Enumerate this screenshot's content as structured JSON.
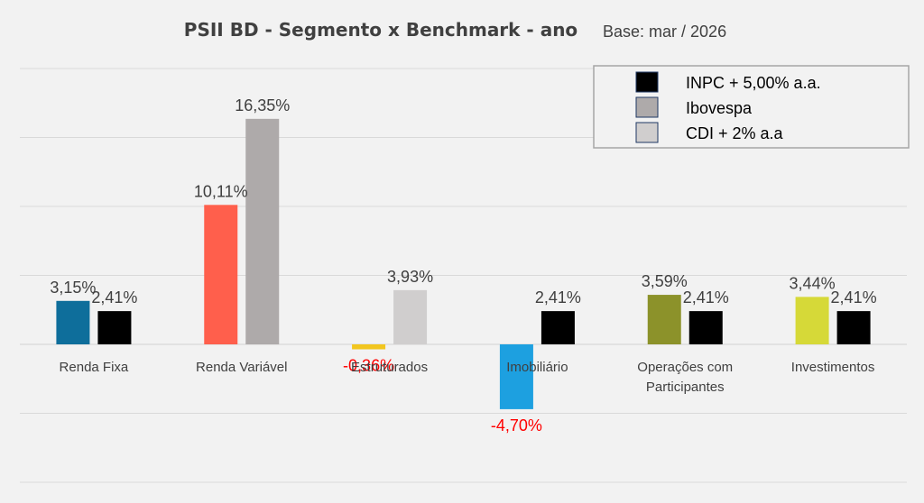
{
  "chart_data": {
    "type": "bar",
    "title": "PSII BD - Segmento x Benchmark - ano",
    "subtitle": "Base: mar / 2026",
    "categories": [
      {
        "label": [
          "Renda Fixa"
        ],
        "segment_value": 3.15,
        "segment_label": "3,15%",
        "segment_color": "#0e6e9b",
        "benchmark": "INPC",
        "benchmark_value": 2.41,
        "benchmark_label": "2,41%"
      },
      {
        "label": [
          "Renda Variável"
        ],
        "segment_value": 10.11,
        "segment_label": "10,11%",
        "segment_color": "#ff5f4c",
        "benchmark": "Ibovespa",
        "benchmark_value": 16.35,
        "benchmark_label": "16,35%"
      },
      {
        "label": [
          "Estruturados"
        ],
        "segment_value": -0.36,
        "segment_label": "-0,36%",
        "segment_color": "#f2c61f",
        "benchmark": "CDI",
        "benchmark_value": 3.93,
        "benchmark_label": "3,93%"
      },
      {
        "label": [
          "Imobiliário"
        ],
        "segment_value": -4.7,
        "segment_label": "-4,70%",
        "segment_color": "#1da0e0",
        "benchmark": "INPC",
        "benchmark_value": 2.41,
        "benchmark_label": "2,41%"
      },
      {
        "label": [
          "Operações com",
          "Participantes"
        ],
        "segment_value": 3.59,
        "segment_label": "3,59%",
        "segment_color": "#8c922a",
        "benchmark": "INPC",
        "benchmark_value": 2.41,
        "benchmark_label": "2,41%"
      },
      {
        "label": [
          "Investimentos"
        ],
        "segment_value": 3.44,
        "segment_label": "3,44%",
        "segment_color": "#d6d938",
        "benchmark": "INPC",
        "benchmark_value": 2.41,
        "benchmark_label": "2,41%"
      }
    ],
    "legend": [
      {
        "key": "INPC",
        "label": "INPC + 5,00% a.a.",
        "color": "#000000"
      },
      {
        "key": "Ibovespa",
        "label": "Ibovespa",
        "color": "#aeaaaa"
      },
      {
        "key": "CDI",
        "label": "CDI + 2% a.a",
        "color": "#d0cece"
      }
    ],
    "legend_position": "top-right",
    "ylim": [
      -10,
      20
    ],
    "gridlines": [
      -10,
      -5,
      0,
      5,
      10,
      15,
      20
    ],
    "grid": true,
    "negative_label_color": "#ff0000"
  }
}
